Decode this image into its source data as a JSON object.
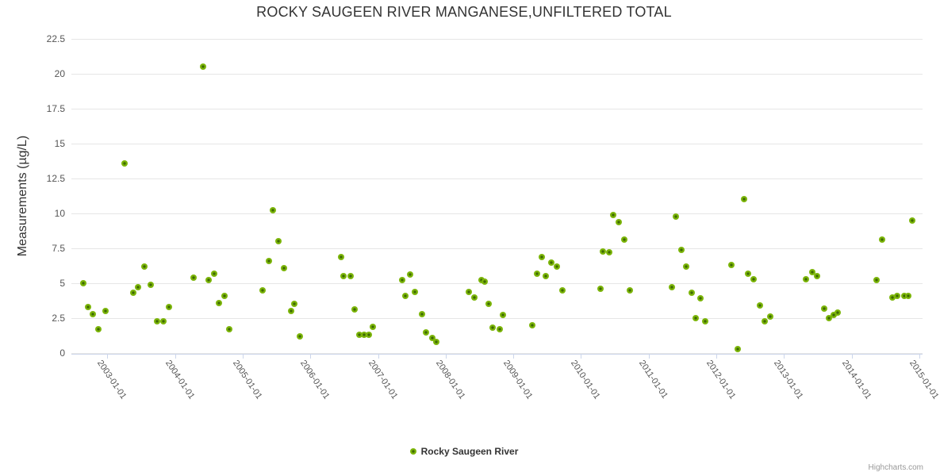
{
  "title": "ROCKY SAUGEEN RIVER MANGANESE,UNFILTERED TOTAL",
  "legend": {
    "label": "Rocky Saugeen River"
  },
  "credits": "Highcharts.com",
  "y_axis": {
    "title": "Measurements (µg/L)"
  },
  "colors": {
    "marker_outer": "#7cb50a",
    "marker_inner": "#3d6a02",
    "gridline": "#e6e6e6",
    "axis_line": "#ccd6eb",
    "title_text": "#333333",
    "tick_label_text": "#555555",
    "credits_text": "#999999"
  },
  "chart_data": {
    "type": "scatter",
    "title": "ROCKY SAUGEEN RIVER MANGANESE,UNFILTERED TOTAL",
    "xlabel": "",
    "ylabel": "Measurements (µg/L)",
    "ylim": [
      0,
      22.5
    ],
    "xlim": [
      2002.42,
      2015.06
    ],
    "grid": true,
    "legend_position": "bottom-center",
    "y_tick_labels": [
      "0",
      "2.5",
      "5",
      "7.5",
      "10",
      "12.5",
      "15",
      "17.5",
      "20",
      "22.5"
    ],
    "y_tick_values": [
      0,
      2.5,
      5,
      7.5,
      10,
      12.5,
      15,
      17.5,
      20,
      22.5
    ],
    "x_ticks": [
      {
        "year": 2003,
        "label": "2003-01-01"
      },
      {
        "year": 2004,
        "label": "2004-01-01"
      },
      {
        "year": 2005,
        "label": "2005-01-01"
      },
      {
        "year": 2006,
        "label": "2006-01-01"
      },
      {
        "year": 2007,
        "label": "2007-01-01"
      },
      {
        "year": 2008,
        "label": "2008-01-01"
      },
      {
        "year": 2009,
        "label": "2009-01-01"
      },
      {
        "year": 2010,
        "label": "2010-01-01"
      },
      {
        "year": 2011,
        "label": "2011-01-01"
      },
      {
        "year": 2012,
        "label": "2012-01-01"
      },
      {
        "year": 2013,
        "label": "2013-01-01"
      },
      {
        "year": 2014,
        "label": "2014-01-01"
      },
      {
        "year": 2015,
        "label": "2015-01-01"
      }
    ],
    "series": [
      {
        "name": "Rocky Saugeen River",
        "color": "#7cb50a",
        "points": [
          [
            2002.64,
            5.0
          ],
          [
            2002.71,
            3.3
          ],
          [
            2002.79,
            2.8
          ],
          [
            2002.87,
            1.7
          ],
          [
            2002.97,
            3.0
          ],
          [
            2003.26,
            13.6
          ],
          [
            2003.38,
            4.3
          ],
          [
            2003.45,
            4.7
          ],
          [
            2003.55,
            6.2
          ],
          [
            2003.64,
            4.9
          ],
          [
            2003.74,
            2.3
          ],
          [
            2003.83,
            2.3
          ],
          [
            2003.91,
            3.3
          ],
          [
            2004.27,
            5.4
          ],
          [
            2004.42,
            20.5
          ],
          [
            2004.5,
            5.2
          ],
          [
            2004.58,
            5.7
          ],
          [
            2004.65,
            3.6
          ],
          [
            2004.73,
            4.1
          ],
          [
            2004.8,
            1.7
          ],
          [
            2005.3,
            4.5
          ],
          [
            2005.39,
            6.6
          ],
          [
            2005.45,
            10.2
          ],
          [
            2005.53,
            8.0
          ],
          [
            2005.61,
            6.1
          ],
          [
            2005.72,
            3.0
          ],
          [
            2005.76,
            3.5
          ],
          [
            2005.84,
            1.2
          ],
          [
            2006.45,
            6.9
          ],
          [
            2006.49,
            5.5
          ],
          [
            2006.59,
            5.5
          ],
          [
            2006.66,
            3.1
          ],
          [
            2006.72,
            1.3
          ],
          [
            2006.8,
            1.3
          ],
          [
            2006.87,
            1.3
          ],
          [
            2006.92,
            1.9
          ],
          [
            2007.36,
            5.2
          ],
          [
            2007.41,
            4.1
          ],
          [
            2007.48,
            5.6
          ],
          [
            2007.55,
            4.4
          ],
          [
            2007.65,
            2.8
          ],
          [
            2007.71,
            1.5
          ],
          [
            2007.8,
            1.1
          ],
          [
            2007.86,
            0.8
          ],
          [
            2008.34,
            4.4
          ],
          [
            2008.42,
            4.0
          ],
          [
            2008.53,
            5.2
          ],
          [
            2008.58,
            5.1
          ],
          [
            2008.63,
            3.5
          ],
          [
            2008.69,
            1.8
          ],
          [
            2008.8,
            1.7
          ],
          [
            2008.85,
            2.7
          ],
          [
            2009.28,
            2.0
          ],
          [
            2009.35,
            5.7
          ],
          [
            2009.42,
            6.9
          ],
          [
            2009.48,
            5.5
          ],
          [
            2009.56,
            6.5
          ],
          [
            2009.64,
            6.2
          ],
          [
            2009.73,
            4.5
          ],
          [
            2010.29,
            4.6
          ],
          [
            2010.32,
            7.3
          ],
          [
            2010.42,
            7.2
          ],
          [
            2010.48,
            9.9
          ],
          [
            2010.56,
            9.4
          ],
          [
            2010.64,
            8.1
          ],
          [
            2010.72,
            4.5
          ],
          [
            2011.34,
            4.7
          ],
          [
            2011.4,
            9.8
          ],
          [
            2011.49,
            7.4
          ],
          [
            2011.55,
            6.2
          ],
          [
            2011.64,
            4.3
          ],
          [
            2011.7,
            2.5
          ],
          [
            2011.77,
            3.9
          ],
          [
            2011.84,
            2.3
          ],
          [
            2012.22,
            6.3
          ],
          [
            2012.32,
            0.3
          ],
          [
            2012.41,
            11.0
          ],
          [
            2012.47,
            5.7
          ],
          [
            2012.55,
            5.3
          ],
          [
            2012.65,
            3.4
          ],
          [
            2012.72,
            2.3
          ],
          [
            2012.8,
            2.6
          ],
          [
            2013.32,
            5.3
          ],
          [
            2013.42,
            5.8
          ],
          [
            2013.49,
            5.5
          ],
          [
            2013.6,
            3.2
          ],
          [
            2013.67,
            2.5
          ],
          [
            2013.73,
            2.7
          ],
          [
            2013.79,
            2.9
          ],
          [
            2014.37,
            5.2
          ],
          [
            2014.45,
            8.1
          ],
          [
            2014.6,
            4.0
          ],
          [
            2014.67,
            4.1
          ],
          [
            2014.78,
            4.1
          ],
          [
            2014.84,
            4.1
          ],
          [
            2014.89,
            9.5
          ]
        ]
      }
    ]
  }
}
